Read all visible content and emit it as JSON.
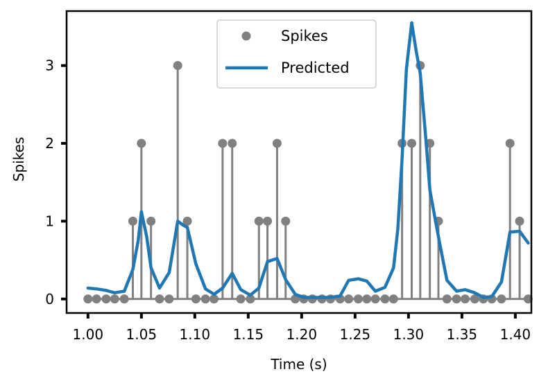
{
  "chart_data": {
    "type": "line",
    "xlabel": "Time (s)",
    "ylabel": "Spikes",
    "xlim": [
      0.98,
      1.415
    ],
    "ylim": [
      -0.18,
      3.7
    ],
    "x_ticks": [
      "1.00",
      "1.05",
      "1.10",
      "1.15",
      "1.20",
      "1.25",
      "1.30",
      "1.35",
      "1.40"
    ],
    "y_ticks": [
      "0",
      "1",
      "2",
      "3"
    ],
    "grid": false,
    "legend_placement": "top-center",
    "colors": {
      "spikes": "#808080",
      "predicted": "#1f77b4"
    },
    "series": [
      {
        "name": "Spikes",
        "kind": "stem",
        "x": [
          1.0,
          1.008,
          1.017,
          1.025,
          1.034,
          1.042,
          1.05,
          1.059,
          1.067,
          1.076,
          1.084,
          1.093,
          1.101,
          1.11,
          1.118,
          1.126,
          1.135,
          1.143,
          1.152,
          1.16,
          1.168,
          1.177,
          1.185,
          1.194,
          1.202,
          1.21,
          1.219,
          1.227,
          1.236,
          1.244,
          1.253,
          1.261,
          1.269,
          1.278,
          1.286,
          1.294,
          1.303,
          1.311,
          1.32,
          1.328,
          1.336,
          1.345,
          1.353,
          1.362,
          1.37,
          1.378,
          1.387,
          1.395,
          1.404,
          1.412
        ],
        "y": [
          0,
          0,
          0,
          0,
          0,
          1,
          2,
          1,
          0,
          0,
          3,
          1,
          0,
          0,
          0,
          2,
          2,
          0,
          0,
          1,
          1,
          2,
          1,
          0,
          0,
          0,
          0,
          0,
          0,
          0,
          0,
          0,
          0,
          0,
          0,
          2,
          2,
          3,
          2,
          1,
          0,
          0,
          0,
          0,
          0,
          0,
          0,
          2,
          1,
          0
        ]
      },
      {
        "name": "Predicted",
        "kind": "line",
        "x": [
          1.0,
          1.008,
          1.017,
          1.025,
          1.034,
          1.042,
          1.047,
          1.05,
          1.055,
          1.059,
          1.067,
          1.076,
          1.084,
          1.089,
          1.093,
          1.101,
          1.11,
          1.118,
          1.126,
          1.135,
          1.143,
          1.152,
          1.16,
          1.168,
          1.177,
          1.185,
          1.194,
          1.202,
          1.21,
          1.219,
          1.227,
          1.236,
          1.244,
          1.253,
          1.261,
          1.269,
          1.278,
          1.286,
          1.29,
          1.294,
          1.298,
          1.303,
          1.307,
          1.311,
          1.316,
          1.32,
          1.328,
          1.336,
          1.345,
          1.353,
          1.362,
          1.37,
          1.378,
          1.387,
          1.395,
          1.404,
          1.412
        ],
        "y": [
          0.14,
          0.13,
          0.11,
          0.08,
          0.1,
          0.38,
          0.75,
          1.12,
          0.8,
          0.4,
          0.14,
          0.34,
          1.0,
          0.95,
          0.92,
          0.45,
          0.13,
          0.06,
          0.14,
          0.33,
          0.12,
          0.05,
          0.14,
          0.48,
          0.52,
          0.25,
          0.06,
          0.02,
          0.02,
          0.02,
          0.02,
          0.04,
          0.24,
          0.26,
          0.23,
          0.1,
          0.15,
          0.4,
          0.9,
          1.8,
          2.95,
          3.55,
          3.2,
          2.9,
          2.1,
          1.4,
          0.8,
          0.24,
          0.1,
          0.12,
          0.08,
          0.02,
          0.03,
          0.22,
          0.86,
          0.87,
          0.72
        ]
      }
    ]
  }
}
